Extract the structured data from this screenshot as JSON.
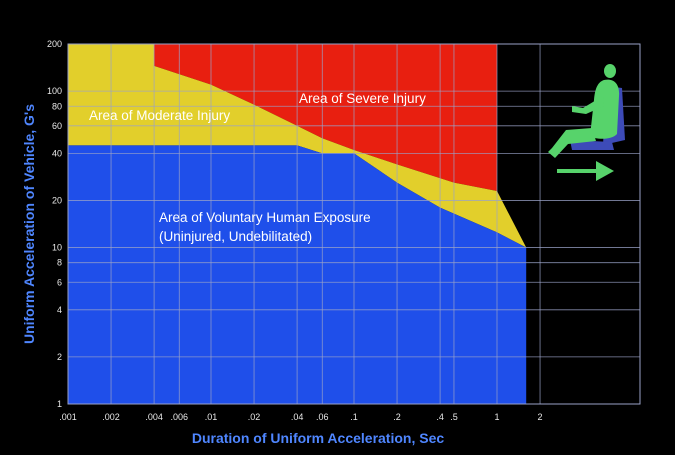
{
  "chart_data": {
    "type": "area",
    "xlabel": "Duration of Uniform Acceleration, Sec",
    "ylabel": "Uniform Acceleration of Vehicle, G's",
    "x_scale": "log",
    "y_scale": "log",
    "xlim": [
      0.001,
      10
    ],
    "ylim": [
      1,
      200
    ],
    "grid": true,
    "x_ticks": [
      ".001",
      ".002",
      ".004",
      ".006",
      ".01",
      ".02",
      ".04",
      ".06",
      ".1",
      ".2",
      ".4",
      ".5",
      "1",
      "2"
    ],
    "x_tick_values": [
      0.001,
      0.002,
      0.004,
      0.006,
      0.01,
      0.02,
      0.04,
      0.06,
      0.1,
      0.2,
      0.4,
      0.5,
      1,
      2
    ],
    "y_ticks": [
      "1",
      "2",
      "4",
      "6",
      "8",
      "10",
      "20",
      "40",
      "60",
      "80",
      "100",
      "200"
    ],
    "y_tick_values": [
      1,
      2,
      4,
      6,
      8,
      10,
      20,
      40,
      60,
      80,
      100,
      200
    ],
    "regions": [
      {
        "label": "Area of Voluntary Human Exposure",
        "sublabel": "(Uninjured, Undebilitated)",
        "color": "#1f4fea",
        "label_color": "#ffffff",
        "boundary": [
          [
            0.001,
            45
          ],
          [
            0.04,
            45
          ],
          [
            0.06,
            40
          ],
          [
            0.1,
            40
          ],
          [
            0.2,
            26
          ],
          [
            0.4,
            18
          ],
          [
            1,
            12.5
          ],
          [
            1.6,
            10
          ]
        ]
      },
      {
        "label": "Area of Moderate Injury",
        "color": "#e2cf2b",
        "label_color": "#ffffff",
        "boundary": [
          [
            0.001,
            200
          ],
          [
            0.004,
            200
          ],
          [
            0.004,
            145
          ],
          [
            0.01,
            110
          ],
          [
            0.02,
            82
          ],
          [
            0.04,
            60
          ],
          [
            0.06,
            50
          ],
          [
            0.1,
            42
          ],
          [
            0.2,
            34
          ],
          [
            0.5,
            26
          ],
          [
            1,
            23
          ],
          [
            1.6,
            10
          ]
        ]
      },
      {
        "label": "Area of Severe Injury",
        "color": "#e81f10",
        "label_color": "#ffffff",
        "upper_x_limit": 1
      }
    ]
  },
  "colors": {
    "background": "#000000",
    "grid": "#9aa2c8",
    "axis_title": "#4f86ff",
    "figure_body": "#57d36b",
    "seat": "#3d4bb8",
    "arrow": "#57d36b"
  },
  "icons": {
    "seated_figure": "seated-person-icon",
    "direction_arrow": "right-arrow-icon"
  }
}
